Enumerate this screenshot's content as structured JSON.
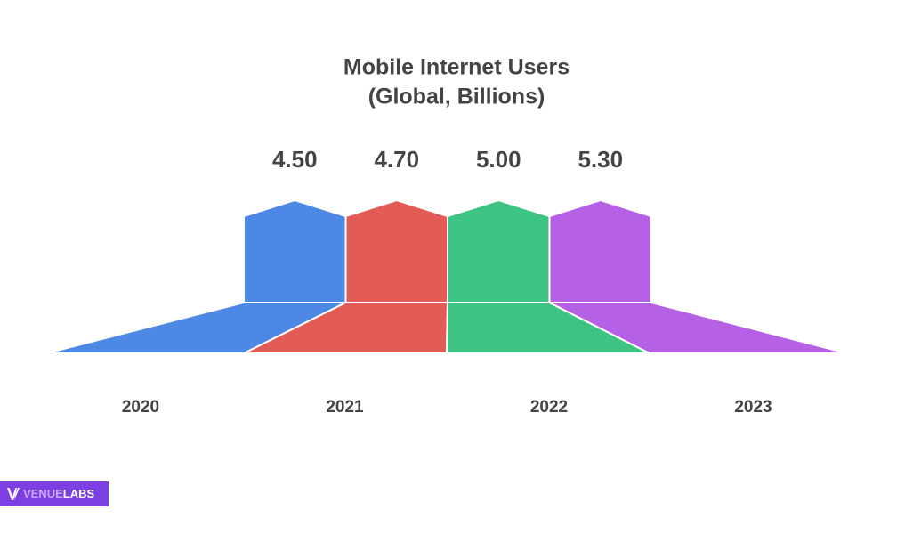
{
  "chart_data": {
    "type": "house",
    "title": "Mobile Internet Users",
    "subtitle": "(Global, Billions)",
    "categories": [
      "2020",
      "2021",
      "2022",
      "2023"
    ],
    "values": [
      4.5,
      4.7,
      5.0,
      5.3
    ],
    "value_labels": [
      "4.50",
      "4.70",
      "5.00",
      "5.30"
    ],
    "colors": [
      "#4e88e5",
      "#e35b55",
      "#3ec482",
      "#b660e5"
    ]
  },
  "brand": {
    "part1": "VENUE",
    "part2": "LABS"
  }
}
